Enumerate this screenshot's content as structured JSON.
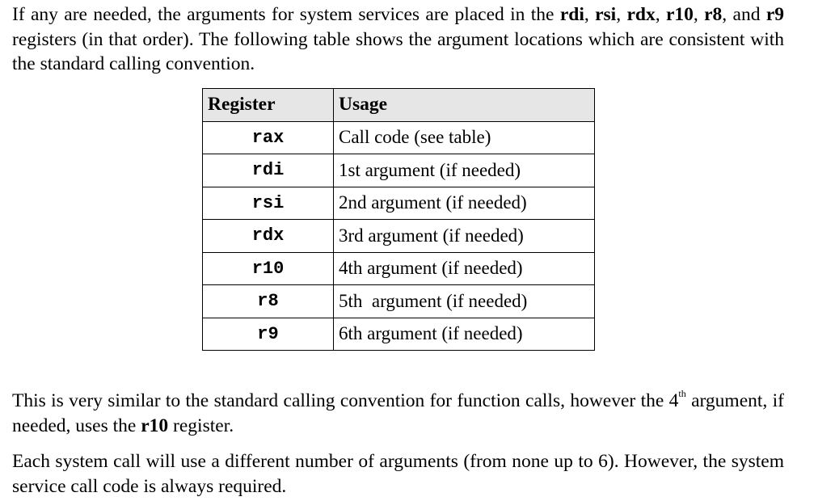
{
  "para1": {
    "t1": "If any are needed, the arguments for system services are placed in the ",
    "b1": "rdi",
    "s1": ", ",
    "b2": "rsi",
    "s2": ", ",
    "b3": "rdx",
    "s3": ", ",
    "b4": "r10",
    "s4": ", ",
    "b5": "r8",
    "s5": ", and ",
    "b6": "r9",
    "t2": " registers (in that order).  The following table shows the argument locations which are consistent with the standard calling convention."
  },
  "table": {
    "headers": [
      "Register",
      "Usage"
    ],
    "rows": [
      {
        "register": "rax",
        "usage": "Call code (see table)"
      },
      {
        "register": "rdi",
        "usage": "1st argument (if needed)"
      },
      {
        "register": "rsi",
        "usage": "2nd argument (if needed)"
      },
      {
        "register": "rdx",
        "usage": "3rd argument (if needed)"
      },
      {
        "register": "r10",
        "usage": "4th argument (if needed)"
      },
      {
        "register": "r8",
        "usage": "5th  argument (if needed)"
      },
      {
        "register": "r9",
        "usage": "6th argument (if needed)"
      }
    ]
  },
  "para2": {
    "t1": "This is very similar to the standard calling convention for function calls, however the 4",
    "sup": "th",
    "t2": " argument, if needed, uses the ",
    "b1": "r10",
    "t3": " register."
  },
  "para3": {
    "text": "Each system call will use a different number of arguments (from none up to 6).  However, the system service call code is always required."
  }
}
